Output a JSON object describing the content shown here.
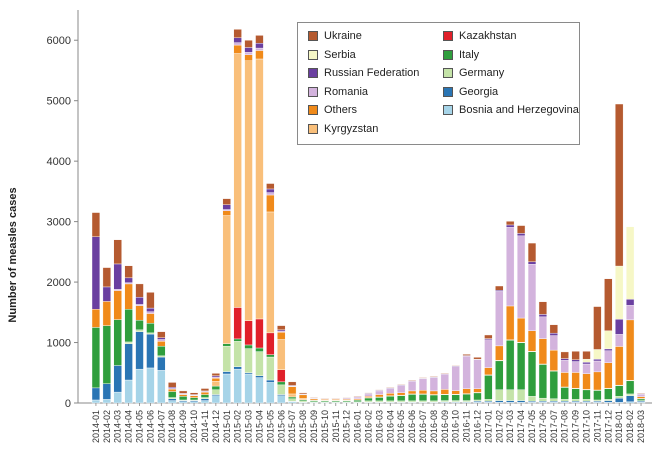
{
  "chart_data": {
    "type": "bar",
    "stacked": true,
    "ylabel": "Number of measles cases",
    "xlabel": "",
    "ylim": [
      0,
      6500
    ],
    "yticks": [
      0,
      1000,
      2000,
      3000,
      4000,
      5000,
      6000
    ],
    "grid": false,
    "legend_placement": "top-right",
    "categories": [
      "2014-01",
      "2014-02",
      "2014-03",
      "2014-04",
      "2014-05",
      "2014-06",
      "2014-07",
      "2014-08",
      "2014-09",
      "2014-10",
      "2014-11",
      "2014-12",
      "2015-01",
      "2015-02",
      "2015-03",
      "2015-04",
      "2015-05",
      "2015-06",
      "2015-07",
      "2015-08",
      "2015-09",
      "2015-10",
      "2015-11",
      "2015-12",
      "2016-01",
      "2016-02",
      "2016-03",
      "2016-04",
      "2016-05",
      "2016-06",
      "2016-07",
      "2016-08",
      "2016-09",
      "2016-10",
      "2016-11",
      "2016-12",
      "2017-01",
      "2017-02",
      "2017-03",
      "2017-04",
      "2017-05",
      "2017-06",
      "2017-07",
      "2017-08",
      "2017-09",
      "2017-10",
      "2017-11",
      "2017-12",
      "2018-01",
      "2018-02",
      "2018-03"
    ],
    "series": [
      {
        "name": "Bosnia and Herzegovina",
        "color": "#a6d4e8",
        "values": [
          50,
          60,
          180,
          380,
          560,
          580,
          540,
          40,
          20,
          20,
          40,
          120,
          480,
          560,
          480,
          420,
          340,
          120,
          20,
          10,
          5,
          5,
          5,
          5,
          5,
          10,
          10,
          10,
          10,
          10,
          10,
          10,
          10,
          10,
          10,
          10,
          10,
          10,
          10,
          10,
          10,
          10,
          10,
          10,
          10,
          10,
          10,
          10,
          10,
          20,
          10
        ]
      },
      {
        "name": "Georgia",
        "color": "#2a75b4",
        "values": [
          200,
          260,
          440,
          600,
          620,
          560,
          220,
          30,
          20,
          20,
          30,
          20,
          40,
          40,
          20,
          30,
          40,
          20,
          10,
          5,
          5,
          5,
          5,
          5,
          5,
          5,
          5,
          5,
          5,
          5,
          5,
          5,
          10,
          10,
          10,
          20,
          20,
          30,
          30,
          30,
          20,
          20,
          20,
          20,
          20,
          20,
          20,
          30,
          70,
          100,
          20
        ]
      },
      {
        "name": "Germany",
        "color": "#c4e3a8",
        "values": [
          0,
          0,
          0,
          30,
          30,
          20,
          20,
          20,
          10,
          10,
          20,
          80,
          420,
          420,
          400,
          400,
          380,
          160,
          40,
          20,
          10,
          10,
          10,
          10,
          10,
          20,
          20,
          20,
          20,
          20,
          20,
          20,
          20,
          20,
          20,
          20,
          30,
          180,
          180,
          180,
          80,
          50,
          40,
          30,
          30,
          30,
          20,
          20,
          30,
          30,
          10
        ]
      },
      {
        "name": "Italy",
        "color": "#2f9e3d",
        "values": [
          1000,
          960,
          760,
          540,
          160,
          160,
          160,
          100,
          60,
          40,
          50,
          60,
          40,
          40,
          60,
          60,
          40,
          50,
          30,
          20,
          20,
          20,
          20,
          20,
          30,
          50,
          60,
          80,
          90,
          110,
          110,
          100,
          100,
          100,
          110,
          120,
          400,
          480,
          820,
          780,
          740,
          560,
          460,
          200,
          180,
          160,
          160,
          180,
          180,
          220,
          30
        ]
      },
      {
        "name": "Kazakhstan",
        "color": "#e0202a",
        "values": [
          0,
          0,
          0,
          0,
          0,
          0,
          0,
          0,
          0,
          0,
          0,
          0,
          0,
          520,
          400,
          480,
          360,
          200,
          0,
          0,
          0,
          0,
          0,
          0,
          0,
          0,
          0,
          0,
          0,
          0,
          0,
          0,
          0,
          0,
          0,
          0,
          0,
          0,
          0,
          0,
          0,
          0,
          0,
          0,
          0,
          0,
          0,
          0,
          0,
          0,
          0
        ]
      },
      {
        "name": "Kyrgyzstan",
        "color": "#f9bf7a",
        "values": [
          0,
          0,
          0,
          0,
          0,
          0,
          0,
          0,
          0,
          0,
          0,
          80,
          2120,
          4200,
          4300,
          4300,
          2000,
          500,
          50,
          20,
          10,
          5,
          5,
          5,
          5,
          5,
          5,
          5,
          5,
          5,
          5,
          5,
          5,
          5,
          5,
          5,
          5,
          5,
          5,
          5,
          5,
          5,
          5,
          5,
          5,
          5,
          5,
          5,
          5,
          5,
          5
        ]
      },
      {
        "name": "Others",
        "color": "#f08a1a",
        "values": [
          300,
          400,
          480,
          420,
          240,
          160,
          80,
          40,
          30,
          30,
          40,
          50,
          80,
          140,
          100,
          140,
          280,
          120,
          120,
          60,
          20,
          15,
          15,
          15,
          15,
          20,
          40,
          40,
          40,
          50,
          60,
          60,
          80,
          60,
          80,
          60,
          120,
          240,
          560,
          400,
          340,
          420,
          340,
          240,
          260,
          260,
          300,
          420,
          640,
          1000,
          30
        ]
      },
      {
        "name": "Romania",
        "color": "#d3b3dd",
        "values": [
          0,
          0,
          20,
          20,
          20,
          30,
          30,
          10,
          10,
          10,
          10,
          20,
          20,
          40,
          40,
          40,
          40,
          20,
          10,
          10,
          10,
          10,
          10,
          20,
          30,
          40,
          60,
          80,
          120,
          160,
          190,
          220,
          250,
          400,
          540,
          480,
          460,
          900,
          1300,
          1360,
          1100,
          360,
          240,
          200,
          180,
          160,
          180,
          200,
          200,
          240,
          40
        ]
      },
      {
        "name": "Russian Federation",
        "color": "#6a3fa0",
        "values": [
          1200,
          240,
          420,
          80,
          120,
          60,
          30,
          20,
          10,
          10,
          10,
          20,
          80,
          80,
          80,
          80,
          60,
          20,
          10,
          5,
          5,
          5,
          5,
          5,
          5,
          10,
          10,
          10,
          10,
          10,
          10,
          10,
          10,
          10,
          10,
          10,
          20,
          20,
          40,
          40,
          40,
          40,
          40,
          30,
          30,
          30,
          30,
          30,
          250,
          100,
          10
        ]
      },
      {
        "name": "Serbia",
        "color": "#f6f7c6",
        "values": [
          0,
          0,
          0,
          0,
          0,
          0,
          0,
          0,
          0,
          0,
          0,
          0,
          0,
          0,
          0,
          0,
          0,
          0,
          0,
          0,
          0,
          0,
          0,
          0,
          0,
          0,
          0,
          0,
          0,
          0,
          0,
          0,
          0,
          0,
          0,
          0,
          0,
          0,
          0,
          0,
          0,
          0,
          0,
          0,
          0,
          50,
          160,
          300,
          880,
          1200,
          0
        ]
      },
      {
        "name": "Ukraine",
        "color": "#b55a30",
        "values": [
          400,
          320,
          400,
          200,
          220,
          260,
          100,
          80,
          40,
          30,
          40,
          40,
          100,
          140,
          120,
          130,
          90,
          70,
          60,
          20,
          10,
          5,
          5,
          5,
          10,
          10,
          10,
          10,
          10,
          10,
          10,
          10,
          10,
          10,
          20,
          30,
          60,
          70,
          60,
          130,
          310,
          210,
          140,
          110,
          140,
          130,
          710,
          860,
          2680,
          0,
          10
        ]
      }
    ]
  },
  "legend": {
    "column_left": [
      "Ukraine",
      "Serbia",
      "Russian Federation",
      "Romania",
      "Others",
      "Kyrgyzstan"
    ],
    "column_right": [
      "Kazakhstan",
      "Italy",
      "Germany",
      "Georgia",
      "Bosnia and Herzegovina"
    ]
  }
}
